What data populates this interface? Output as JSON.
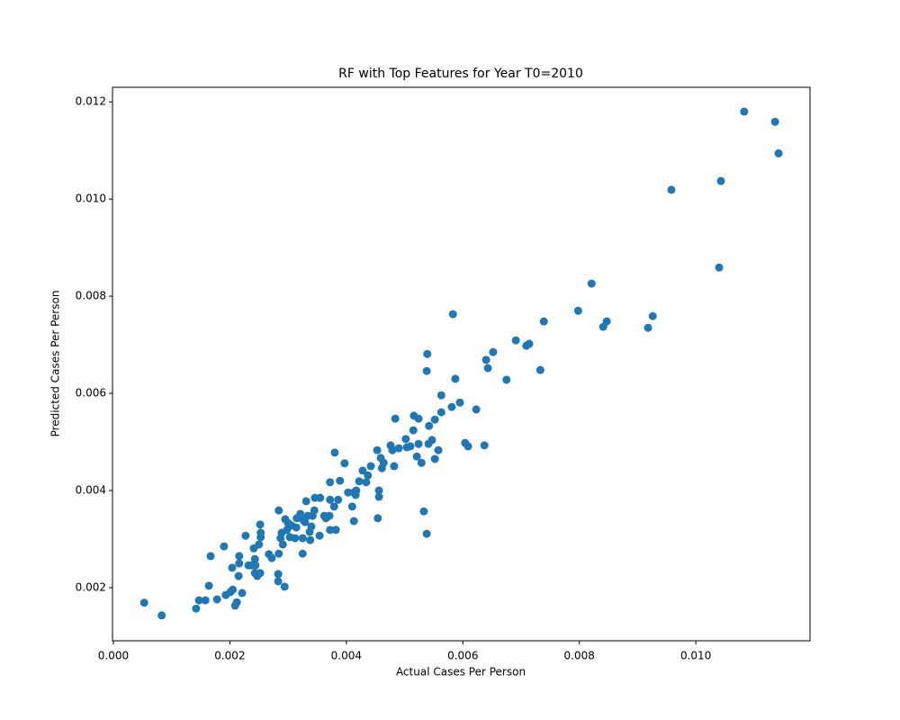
{
  "chart_data": {
    "type": "scatter",
    "title": "RF with Top Features for Year T0=2010",
    "x_label": "Actual Cases Per Person",
    "y_label": "Predicted Cases Per Person",
    "color": "#1f77b4",
    "grid": false,
    "xlim": [
      -1.5e-05,
      0.01196
    ],
    "ylim": [
      0.000907,
      0.0123
    ],
    "xticks": [
      {
        "value": 0,
        "label": "0.000"
      },
      0.002,
      0.004,
      0.006,
      0.008,
      {
        "value": 0.01,
        "label": "0.010"
      }
    ],
    "yticks": [
      0.002,
      0.004,
      0.006,
      0.008,
      {
        "value": 0.01,
        "label": "0.010"
      },
      0.012
    ],
    "x": [
      0.00053,
      0.00083,
      0.00142,
      0.00147,
      0.00158,
      0.00164,
      0.00167,
      0.00178,
      0.0019,
      0.00193,
      0.00201,
      0.00204,
      0.00205,
      0.00209,
      0.00212,
      0.00215,
      0.00216,
      0.00216,
      0.00221,
      0.00227,
      0.00232,
      0.00238,
      0.00243,
      0.00241,
      0.00243,
      0.00244,
      0.00247,
      0.0025,
      0.00252,
      0.00252,
      0.00253,
      0.00253,
      0.00267,
      0.00272,
      0.00283,
      0.00283,
      0.00284,
      0.00284,
      0.00287,
      0.00289,
      0.00291,
      0.00294,
      0.00295,
      0.00298,
      0.003,
      0.00303,
      0.00306,
      0.00312,
      0.00314,
      0.00315,
      0.00321,
      0.00325,
      0.00325,
      0.00326,
      0.00329,
      0.00331,
      0.00334,
      0.00337,
      0.00338,
      0.0034,
      0.00342,
      0.00345,
      0.00346,
      0.00354,
      0.00355,
      0.00362,
      0.00365,
      0.00371,
      0.00372,
      0.00372,
      0.00372,
      0.00379,
      0.0038,
      0.00382,
      0.00386,
      0.00389,
      0.00397,
      0.00403,
      0.0041,
      0.00413,
      0.00413,
      0.00416,
      0.00417,
      0.00422,
      0.00428,
      0.00434,
      0.00437,
      0.00442,
      0.00453,
      0.00454,
      0.00456,
      0.00456,
      0.00459,
      0.00461,
      0.00464,
      0.00476,
      0.00479,
      0.00482,
      0.00484,
      0.0049,
      0.00502,
      0.00504,
      0.0051,
      0.00515,
      0.00516,
      0.00521,
      0.00524,
      0.00524,
      0.00529,
      0.00533,
      0.00538,
      0.00538,
      0.00539,
      0.00541,
      0.00542,
      0.00547,
      0.00552,
      0.00552,
      0.00558,
      0.00563,
      0.00563,
      0.00581,
      0.00583,
      0.00587,
      0.00595,
      0.00604,
      0.00609,
      0.00623,
      0.00637,
      0.0064,
      0.00643,
      0.00652,
      0.00675,
      0.00691,
      0.00709,
      0.00714,
      0.00733,
      0.00739,
      0.00798,
      0.00821,
      0.00841,
      0.00847,
      0.00918,
      0.00926,
      0.00958,
      0.0104,
      0.01043,
      0.01083,
      0.01136,
      0.01142
    ],
    "values": [
      0.00169,
      0.00143,
      0.00157,
      0.00174,
      0.00174,
      0.00204,
      0.00265,
      0.00176,
      0.00285,
      0.00185,
      0.00191,
      0.00241,
      0.00196,
      0.00163,
      0.0017,
      0.00224,
      0.00265,
      0.0025,
      0.00189,
      0.00307,
      0.00246,
      0.00246,
      0.0023,
      0.00281,
      0.00259,
      0.00246,
      0.00224,
      0.00289,
      0.0033,
      0.0023,
      0.00304,
      0.00313,
      0.00269,
      0.00261,
      0.00228,
      0.00213,
      0.00359,
      0.0027,
      0.00302,
      0.00313,
      0.00289,
      0.00202,
      0.00341,
      0.00319,
      0.00333,
      0.00304,
      0.00328,
      0.00302,
      0.00324,
      0.00343,
      0.00352,
      0.0027,
      0.00302,
      0.00339,
      0.00335,
      0.00378,
      0.00348,
      0.00315,
      0.00298,
      0.00326,
      0.00348,
      0.00359,
      0.00385,
      0.00307,
      0.00385,
      0.00348,
      0.00343,
      0.00348,
      0.00319,
      0.00381,
      0.00417,
      0.00367,
      0.00478,
      0.00319,
      0.00381,
      0.0042,
      0.00456,
      0.00396,
      0.00367,
      0.00337,
      0.00396,
      0.00391,
      0.004,
      0.00419,
      0.00441,
      0.00417,
      0.00431,
      0.0045,
      0.00483,
      0.00343,
      0.004,
      0.00387,
      0.00467,
      0.00446,
      0.00457,
      0.00493,
      0.00483,
      0.0045,
      0.00548,
      0.00487,
      0.00506,
      0.00489,
      0.00491,
      0.00524,
      0.00554,
      0.0047,
      0.00496,
      0.00548,
      0.00457,
      0.00357,
      0.00311,
      0.00646,
      0.00681,
      0.00496,
      0.00533,
      0.00504,
      0.00546,
      0.00465,
      0.00483,
      0.00561,
      0.00596,
      0.00572,
      0.00763,
      0.0063,
      0.00581,
      0.00498,
      0.00491,
      0.00567,
      0.00493,
      0.00669,
      0.00652,
      0.00685,
      0.00628,
      0.00709,
      0.00698,
      0.00702,
      0.00648,
      0.00748,
      0.0077,
      0.00826,
      0.00737,
      0.00748,
      0.00735,
      0.00759,
      0.01019,
      0.00859,
      0.01037,
      0.0118,
      0.01159,
      0.01094
    ]
  }
}
